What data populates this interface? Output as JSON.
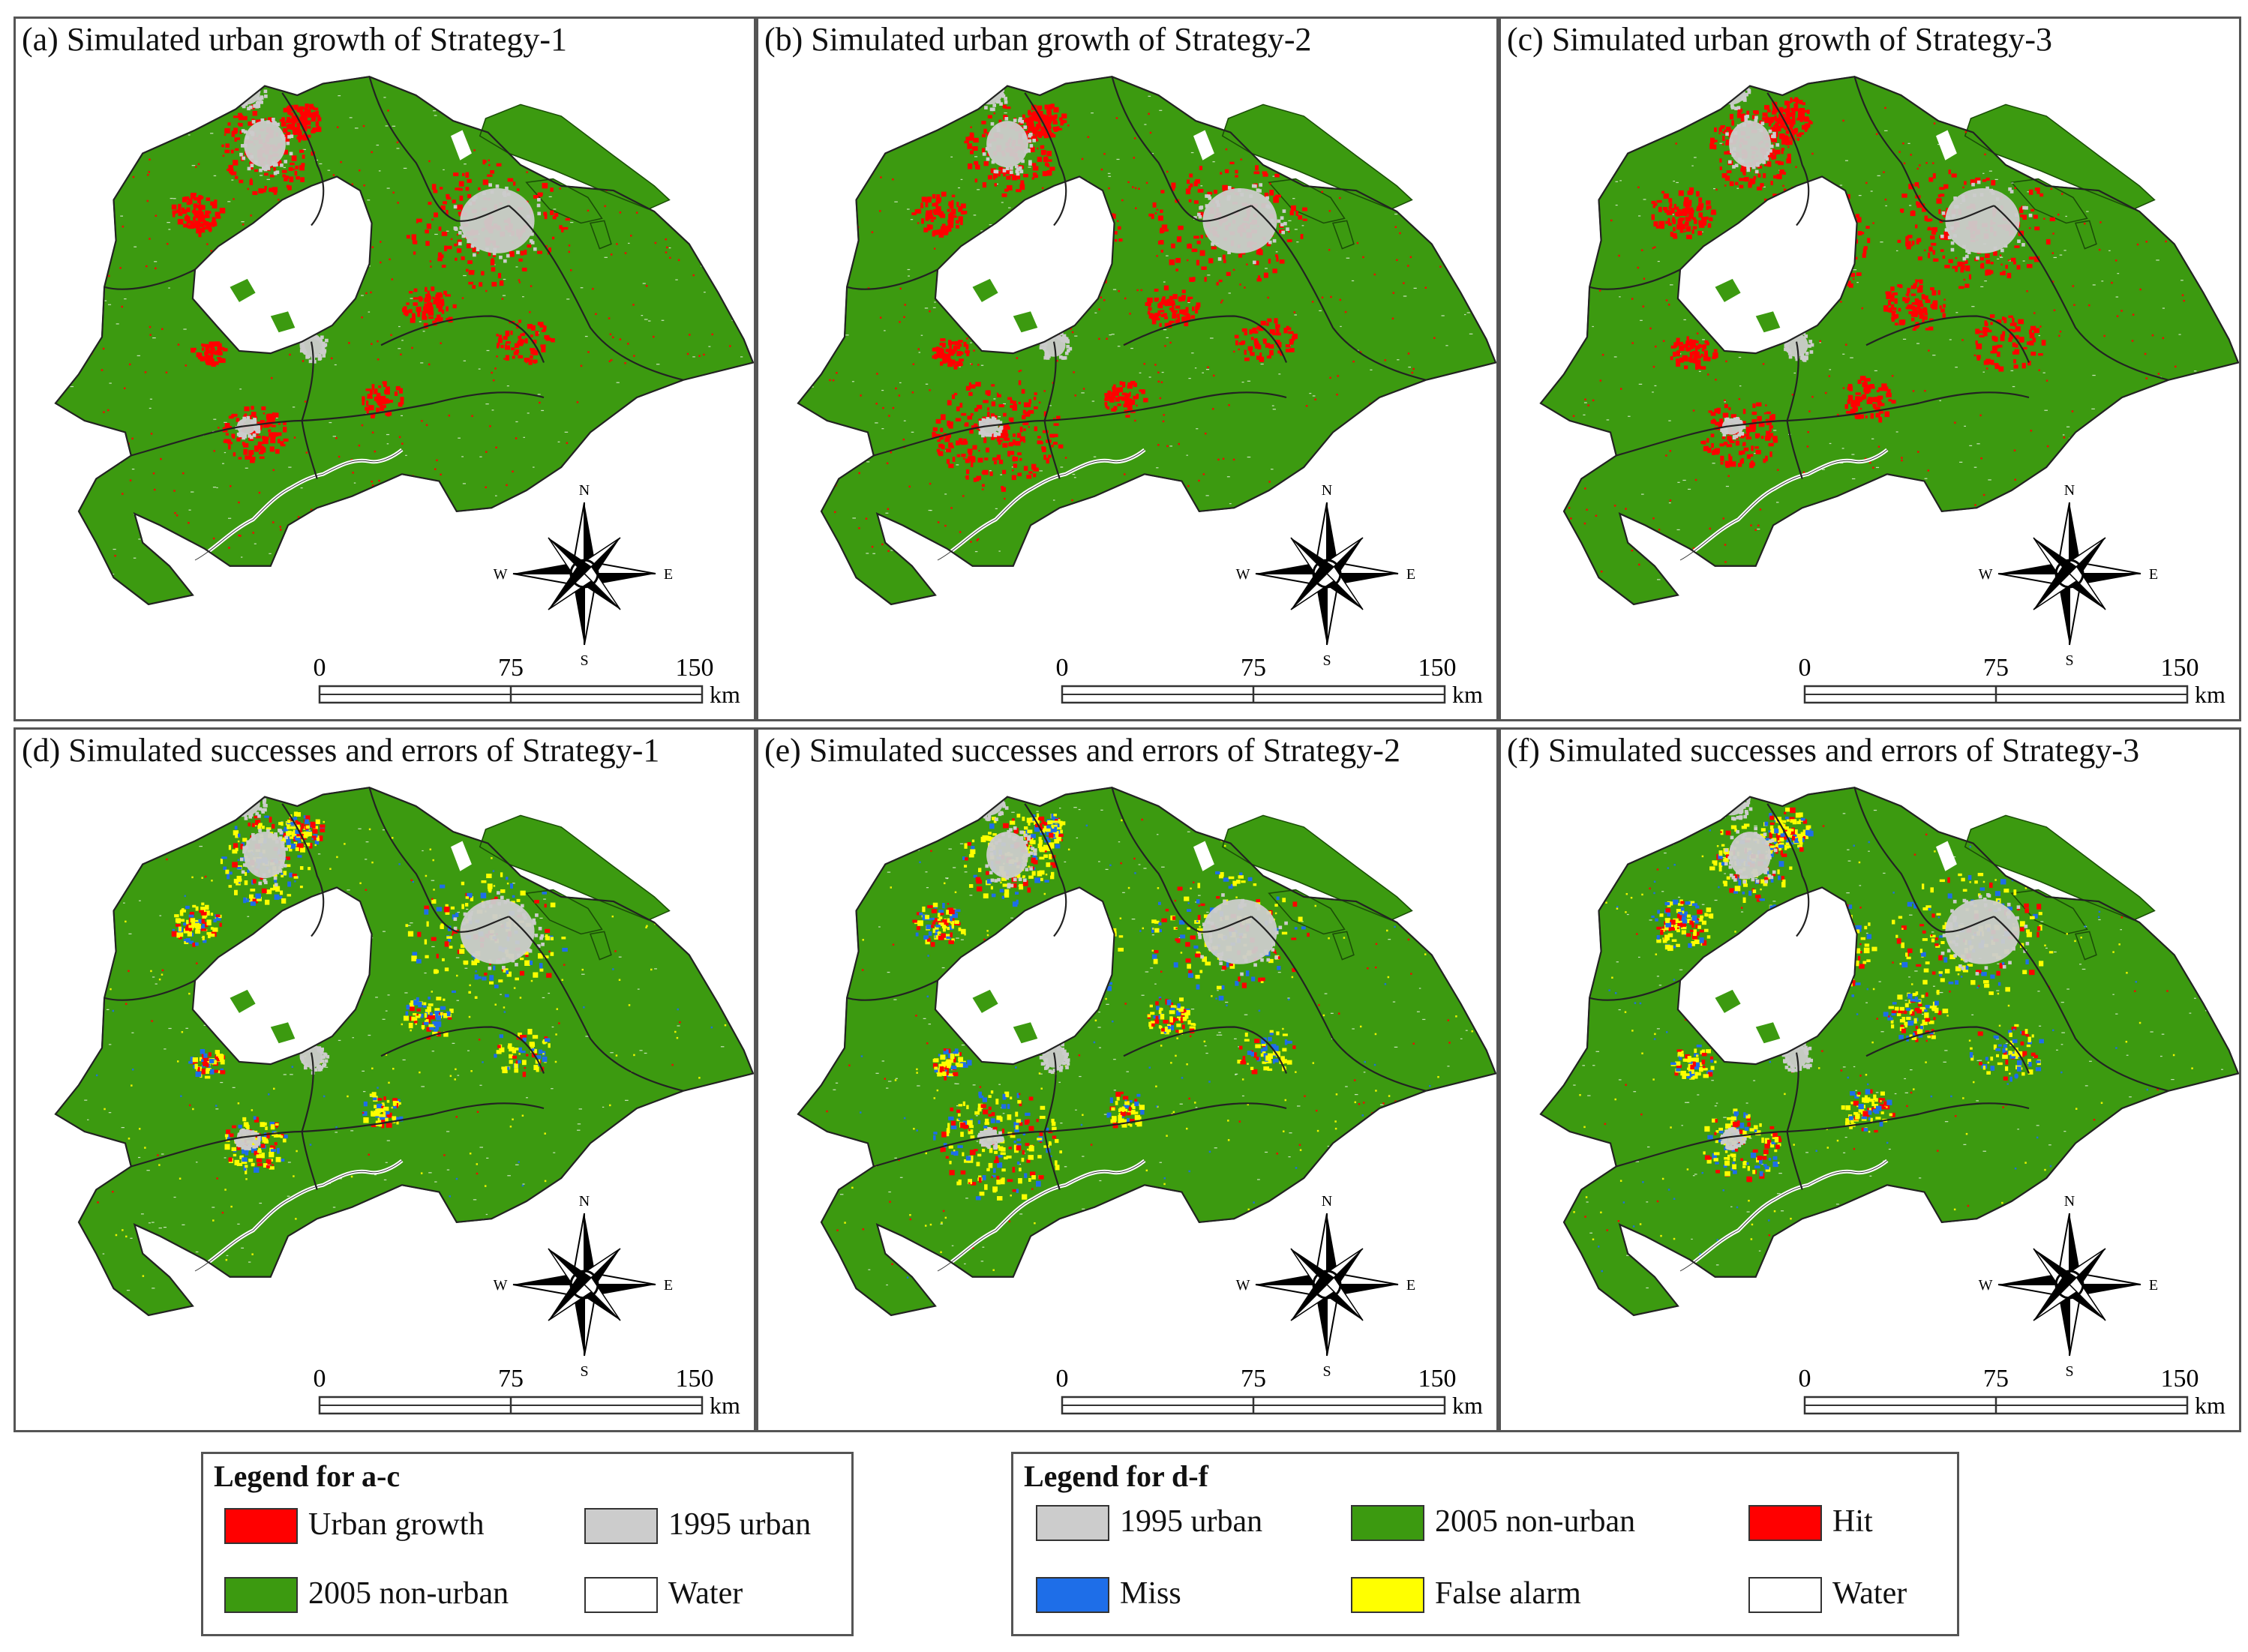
{
  "panels": [
    {
      "id": "a",
      "title": "(a) Simulated urban growth of Strategy-1",
      "kind": "growth",
      "variant": 1
    },
    {
      "id": "b",
      "title": "(b) Simulated urban growth of Strategy-2",
      "kind": "growth",
      "variant": 2
    },
    {
      "id": "c",
      "title": "(c) Simulated urban growth of Strategy-3",
      "kind": "growth",
      "variant": 3
    },
    {
      "id": "d",
      "title": "(d) Simulated successes and errors of Strategy-1",
      "kind": "accuracy",
      "variant": 1
    },
    {
      "id": "e",
      "title": "(e) Simulated successes and errors of Strategy-2",
      "kind": "accuracy",
      "variant": 2
    },
    {
      "id": "f",
      "title": "(f) Simulated successes and errors of Strategy-3",
      "kind": "accuracy",
      "variant": 3
    }
  ],
  "compass": {
    "n": "N",
    "s": "S",
    "e": "E",
    "w": "W"
  },
  "scalebar": {
    "ticks": [
      "0",
      "75",
      "150"
    ],
    "unit": "km"
  },
  "legend_ac": {
    "title": "Legend for a-c",
    "items": [
      {
        "label": "Urban growth",
        "color": "#ff0000"
      },
      {
        "label": "1995 urban",
        "color": "#cccccc"
      },
      {
        "label": "2005 non-urban",
        "color": "#3c9a10"
      },
      {
        "label": "Water",
        "color": "#ffffff"
      }
    ]
  },
  "legend_df": {
    "title": "Legend for d-f",
    "items": [
      {
        "label": "1995 urban",
        "color": "#cccccc"
      },
      {
        "label": "2005 non-urban",
        "color": "#3c9a10"
      },
      {
        "label": "Hit",
        "color": "#ff0000"
      },
      {
        "label": "Miss",
        "color": "#1e6ee8"
      },
      {
        "label": "False  alarm",
        "color": "#ffff00"
      },
      {
        "label": "Water",
        "color": "#ffffff"
      }
    ]
  },
  "colors": {
    "land": "#3c9a10",
    "urban1995": "#cccccc",
    "growth": "#ff0000",
    "hit": "#ff0000",
    "miss": "#1e6ee8",
    "false_alarm": "#ffff00",
    "water": "#ffffff",
    "boundary": "#222222"
  }
}
